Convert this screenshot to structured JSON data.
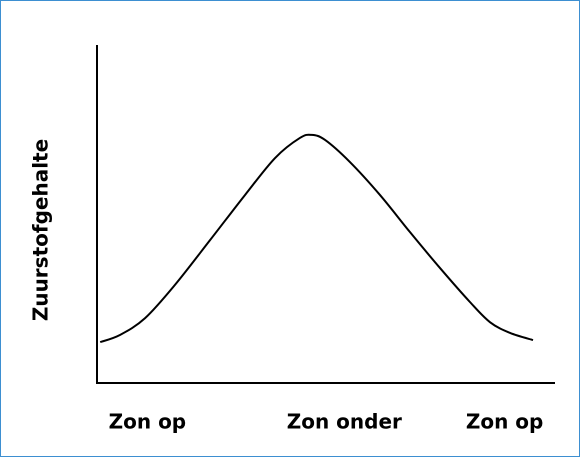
{
  "chart_data": {
    "type": "line",
    "y_label": "Zuurstofgehalte",
    "x": [
      0.7,
      5.0,
      10.5,
      17.0,
      24.7,
      32.3,
      38.9,
      44.3,
      46.9,
      49.8,
      55.2,
      61.8,
      68.3,
      74.9,
      81.4,
      85.8,
      90.2,
      95.2
    ],
    "values": [
      12.1,
      14.2,
      19.2,
      29.0,
      42.3,
      55.6,
      66.6,
      72.5,
      73.4,
      71.9,
      65.4,
      55.6,
      44.7,
      34.0,
      24.0,
      18.0,
      14.8,
      12.7
    ],
    "color": "#000000",
    "xlim": [
      0,
      100
    ],
    "ylim": [
      0,
      100
    ],
    "xticks": [
      {
        "value": 11,
        "label": "Zon op"
      },
      {
        "value": 54,
        "label": "Zon onder"
      },
      {
        "value": 89,
        "label": "Zon op"
      }
    ]
  }
}
